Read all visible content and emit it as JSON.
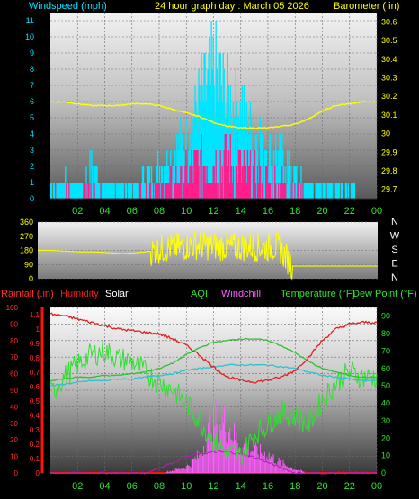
{
  "header": {
    "windspeed_label": "Windspeed (mph)",
    "title": "24 hour graph day : March 05 2026",
    "barometer_label": "Barometer ( in)"
  },
  "colors": {
    "wind_avg": "#00e5ff",
    "wind_gust": "#ff1e8c",
    "barometer": "#ffff00",
    "direction": "#ffff00",
    "rain": "#ff3030",
    "humidity": "#e02020",
    "solar": "#ffffff",
    "aqi": "#30e030",
    "windchill": "#ff60ff",
    "temperature": "#30c030",
    "dewpoint": "#30c0d0",
    "grid": "#6a6a6a"
  },
  "bottom_legend": {
    "rainfall": "Rainfall (.in)",
    "humidity": "Humidity",
    "solar": "Solar",
    "aqi": "AQI",
    "windchill": "Windchill",
    "temperature": "Temperature (°F)",
    "dewpoint": "Dew Point (°F)"
  },
  "chart_data": [
    {
      "type": "bar",
      "x_ticks": [
        "02",
        "04",
        "06",
        "08",
        "10",
        "12",
        "14",
        "16",
        "18",
        "20",
        "22",
        "00"
      ],
      "y_left_ticks": [
        "0",
        "1",
        "2",
        "3",
        "4",
        "5",
        "6",
        "7",
        "8",
        "9",
        "10",
        "11"
      ],
      "y_left_range": [
        0,
        11.5
      ],
      "y_right_ticks": [
        "29.7",
        "29.8",
        "29.9",
        "30",
        "30.1",
        "30.2",
        "30.3",
        "30.4",
        "30.5",
        "30.6"
      ],
      "y_right_range": [
        29.65,
        30.65
      ],
      "series": [
        {
          "name": "Windspeed (mph)",
          "hourly_peak": [
            1,
            2,
            1,
            3,
            1,
            1,
            1,
            2,
            3,
            4,
            6,
            9,
            11,
            9,
            8,
            6,
            5,
            4,
            2,
            1,
            1,
            1,
            1,
            0
          ]
        },
        {
          "name": "Barometer ( in)",
          "hourly": [
            30.17,
            30.17,
            30.16,
            30.15,
            30.15,
            30.15,
            30.16,
            30.16,
            30.15,
            30.13,
            30.11,
            30.09,
            30.06,
            30.04,
            30.03,
            30.03,
            30.03,
            30.04,
            30.05,
            30.08,
            30.12,
            30.15,
            30.16,
            30.17
          ]
        }
      ]
    },
    {
      "type": "line",
      "y_left_ticks": [
        "0",
        "90",
        "180",
        "270",
        "360"
      ],
      "y_left_range": [
        0,
        360
      ],
      "y_right_ticks": [
        "N",
        "W",
        "S",
        "E",
        "N"
      ],
      "series": [
        {
          "name": "Wind direction",
          "hourly": [
            180,
            180,
            175,
            170,
            170,
            165,
            160,
            165,
            175,
            195,
            200,
            215,
            210,
            205,
            200,
            205,
            200,
            200,
            80,
            80,
            80,
            80,
            80,
            80
          ]
        }
      ]
    },
    {
      "type": "line",
      "x_ticks": [
        "02",
        "04",
        "06",
        "08",
        "10",
        "12",
        "14",
        "16",
        "18",
        "20",
        "22",
        "00"
      ],
      "y_left_ticks": [
        "0",
        "10",
        "20",
        "30",
        "40",
        "50",
        "60",
        "70",
        "80",
        "90",
        "100"
      ],
      "y_left_range": [
        0,
        100
      ],
      "y_rain_ticks": [
        "0",
        "0.1",
        "0.2",
        "0.3",
        "0.4",
        "0.5",
        "0.6",
        "0.7",
        "0.8",
        "0.9",
        "1",
        "1.1"
      ],
      "y_right_ticks": [
        "0",
        "10",
        "20",
        "30",
        "40",
        "50",
        "60",
        "70",
        "80",
        "90"
      ],
      "y_right_range": [
        0,
        95
      ],
      "series": [
        {
          "name": "Humidity",
          "hourly": [
            96,
            95,
            93,
            91,
            89,
            87,
            86,
            85,
            84,
            81,
            77,
            71,
            64,
            58,
            56,
            55,
            56,
            58,
            62,
            70,
            80,
            87,
            90,
            91
          ]
        },
        {
          "name": "Temperature (°F)",
          "hourly": [
            53,
            54,
            55,
            55,
            56,
            56,
            57,
            58,
            60,
            63,
            68,
            72,
            75,
            76,
            77,
            77,
            76,
            73,
            69,
            64,
            60,
            58,
            56,
            55
          ]
        },
        {
          "name": "Dew Point (°F)",
          "hourly": [
            50,
            51,
            52,
            53,
            53,
            54,
            54,
            55,
            56,
            57,
            59,
            60,
            61,
            62,
            62,
            62,
            62,
            61,
            60,
            58,
            56,
            55,
            54,
            53
          ]
        },
        {
          "name": "AQI",
          "hourly": [
            45,
            55,
            62,
            68,
            70,
            66,
            64,
            58,
            52,
            48,
            40,
            30,
            18,
            12,
            10,
            22,
            28,
            35,
            32,
            28,
            42,
            52,
            58,
            55
          ]
        },
        {
          "name": "Windchill",
          "hourly": [
            0,
            0,
            0,
            0,
            0,
            0,
            0,
            0,
            0,
            2,
            5,
            15,
            45,
            40,
            22,
            18,
            15,
            8,
            3,
            0,
            0,
            0,
            0,
            0
          ]
        },
        {
          "name": "Solar",
          "hourly": [
            0,
            0,
            0,
            0,
            0,
            0,
            0,
            0,
            3,
            6,
            9,
            11,
            12,
            12,
            11,
            9,
            6,
            3,
            0,
            0,
            0,
            0,
            0,
            0
          ]
        },
        {
          "name": "Rainfall (.in)",
          "hourly": [
            0,
            0,
            0,
            0,
            0,
            0,
            0,
            0,
            0,
            0,
            0,
            0,
            0,
            0,
            0,
            0,
            0,
            0,
            0,
            0,
            0,
            0,
            0,
            0
          ]
        }
      ]
    }
  ]
}
